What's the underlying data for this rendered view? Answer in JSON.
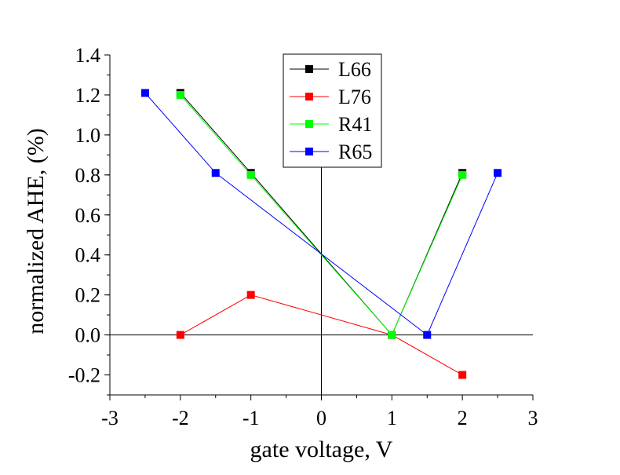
{
  "chart_data": {
    "type": "line",
    "title": "",
    "xlabel": "gate voltage, V",
    "ylabel": "normalized AHE, (%)",
    "xlim": [
      -3,
      3
    ],
    "ylim": [
      -0.3,
      1.4
    ],
    "xticks": [
      -3,
      -2,
      -1,
      0,
      1,
      2,
      3
    ],
    "xtick_labels": [
      "-3",
      "-2",
      "-1",
      "0",
      "1",
      "2",
      "3"
    ],
    "yticks": [
      -0.2,
      0.0,
      0.2,
      0.4,
      0.6,
      0.8,
      1.0,
      1.2,
      1.4
    ],
    "ytick_labels": [
      "-0.2",
      "0.0",
      "0.2",
      "0.4",
      "0.6",
      "0.8",
      "1.0",
      "1.2",
      "1.4"
    ],
    "grid": false,
    "zero_lines": true,
    "legend_position": "top-center",
    "series": [
      {
        "name": "L66",
        "color": "#000000",
        "marker": "square",
        "x": [
          -2,
          -1,
          1,
          2
        ],
        "y": [
          1.21,
          0.81,
          0.0,
          0.81
        ]
      },
      {
        "name": "L76",
        "color": "#ff0000",
        "marker": "square",
        "x": [
          -2,
          -1,
          1,
          2
        ],
        "y": [
          0.0,
          0.2,
          0.0,
          -0.2
        ]
      },
      {
        "name": "R41",
        "color": "#00ff00",
        "marker": "square",
        "x": [
          -2,
          -1,
          1,
          2
        ],
        "y": [
          1.2,
          0.8,
          0.0,
          0.8
        ]
      },
      {
        "name": "R65",
        "color": "#0000ff",
        "marker": "square",
        "x": [
          -2.5,
          -1.5,
          1.5,
          2.5
        ],
        "y": [
          1.21,
          0.81,
          0.0,
          0.81
        ]
      }
    ]
  }
}
